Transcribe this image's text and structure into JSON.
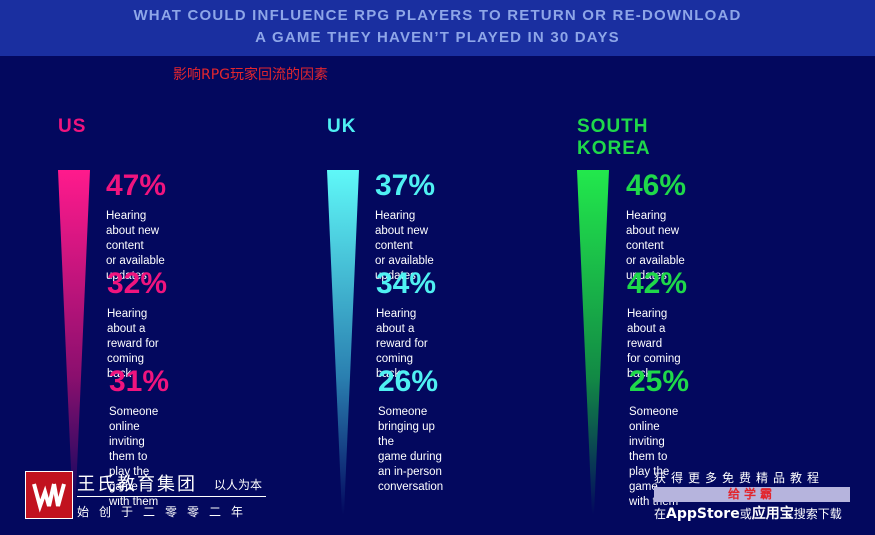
{
  "header": {
    "line1": "WHAT COULD INFLUENCE RPG PLAYERS TO RETURN OR RE-DOWNLOAD",
    "line2": "A GAME  THEY HAVEN’T PLAYED IN 30 DAYS"
  },
  "subtitle_cn": "影响RPG玩家回流的因素",
  "regions": [
    {
      "name": "US",
      "color": "#f0147e",
      "stats": [
        {
          "value": "47%",
          "label_lines": [
            "Hearing about new content",
            "or available updates"
          ]
        },
        {
          "value": "32%",
          "label_lines": [
            "Hearing about a reward for",
            "coming back"
          ]
        },
        {
          "value": "31%",
          "label_lines": [
            "Someone online inviting",
            "them to play the game",
            "with them"
          ]
        }
      ]
    },
    {
      "name": "UK",
      "color": "#4ff0f2",
      "stats": [
        {
          "value": "37%",
          "label_lines": [
            "Hearing about new content",
            "or available updates"
          ]
        },
        {
          "value": "34%",
          "label_lines": [
            "Hearing about a reward for",
            "coming back"
          ]
        },
        {
          "value": "26%",
          "label_lines": [
            "Someone bringing up the",
            "game during an in-person",
            "conversation"
          ]
        }
      ]
    },
    {
      "name": "SOUTH KOREA",
      "color": "#1fd84a",
      "stats": [
        {
          "value": "46%",
          "label_lines": [
            "Hearing about new content",
            "or available updates"
          ]
        },
        {
          "value": "42%",
          "label_lines": [
            "Hearing about a reward",
            "for coming back"
          ]
        },
        {
          "value": "25%",
          "label_lines": [
            "Someone online inviting",
            "them to play the game",
            "with them"
          ]
        }
      ]
    }
  ],
  "footer": {
    "logo_title": "王氏教育集团",
    "logo_slogan": "以人为本",
    "logo_sub": "始创于二零零二年",
    "promo_line1": "获得更多免费精品教程",
    "promo_bar": "给学霸",
    "promo_line2_pre": "在",
    "promo_line2_bold1": "AppStore",
    "promo_line2_mid": "或",
    "promo_line2_bold2": "应用宝",
    "promo_line2_post": "搜索下载"
  }
}
